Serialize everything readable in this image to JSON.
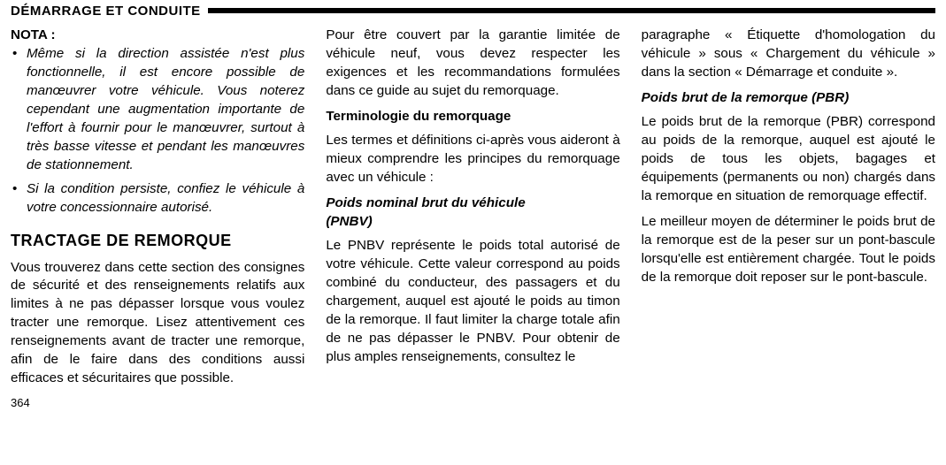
{
  "header": {
    "title": "DÉMARRAGE ET CONDUITE"
  },
  "col1": {
    "notaLabel": "NOTA :",
    "bullets": [
      "Même si la direction assistée n'est plus fonctionnelle, il est encore possible de manœuvrer votre véhicule. Vous note­rez cependant une augmentation im­portante de l'effort à fournir pour le manœuvrer, surtout à très basse vitesse et pendant les manœuvres de stationnement.",
      "Si la condition persiste, confiez le véhi­cule à votre concessionnaire autorisé."
    ],
    "h2": "TRACTAGE DE REMORQUE",
    "p1": "Vous trouverez dans cette section des consignes de sécurité et des renseigne­ments relatifs aux limites à ne pas dépasser lorsque vous voulez tracter une remorque. Lisez attentivement ces renseignements avant de tracter une remorque, afin de le faire dans des conditions aussi efficaces et sécuritaires que possible.",
    "pageNumber": "364"
  },
  "col2": {
    "p1": "Pour être couvert par la garantie limitée de véhicule neuf, vous devez respecter les exigences et les recommandations formu­lées dans ce guide au sujet du remor­quage.",
    "sub1": "Terminologie du remorquage",
    "p2": "Les termes et définitions ci-après vous aideront à mieux comprendre les princi­pes du remorquage avec un véhicule :",
    "sub2a": "Poids nominal brut du véhicule",
    "sub2b": "(PNBV)",
    "p3": "Le PNBV représente le poids total autorisé de votre véhicule. Cette valeur corres­pond au poids combiné du conducteur, des passagers et du chargement, auquel est ajouté le poids au timon de la remor­que. Il faut limiter la charge totale afin de ne pas dépasser le PNBV. Pour obtenir de plus amples renseignements, consultez le"
  },
  "col3": {
    "p1": "paragraphe « Étiquette d'homologation du véhicule » sous « Chargement du véhicule » dans la section « Démarrage et conduite ».",
    "sub1": "Poids brut de la remorque (PBR)",
    "p2": "Le poids brut de la remorque (PBR) cor­respond au poids de la remorque, auquel est ajouté le poids de tous les objets, bagages et équipements (permanents ou non) chargés dans la remorque en situa­tion de remorquage effectif.",
    "p3": "Le meilleur moyen de déterminer le poids brut de la remorque est de la peser sur un pont-bascule lorsqu'elle est entièrement chargée. Tout le poids de la remorque doit reposer sur le pont-bascule."
  }
}
